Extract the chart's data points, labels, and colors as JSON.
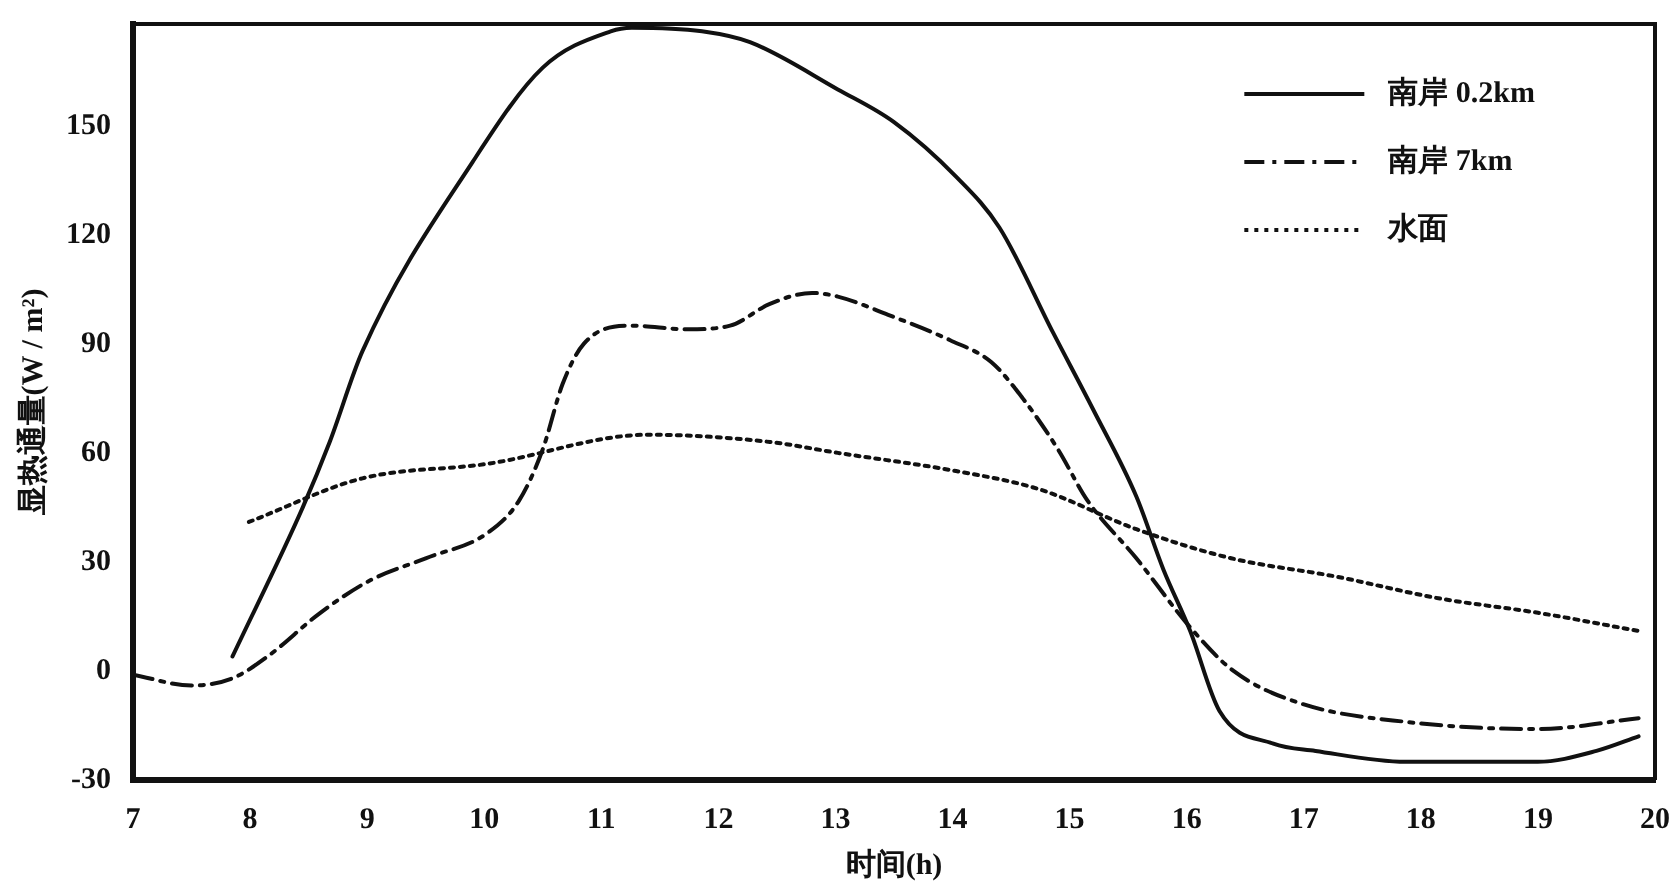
{
  "chart_data": {
    "type": "line",
    "xlabel": "时间(h)",
    "ylabel": "显热通量(W / m²)",
    "xlim": [
      7,
      20
    ],
    "xticks": [
      7,
      8,
      9,
      10,
      11,
      12,
      13,
      14,
      15,
      16,
      17,
      18,
      19,
      20
    ],
    "ylim": [
      -30,
      178
    ],
    "yticks": [
      -30,
      0,
      30,
      60,
      90,
      120,
      150
    ],
    "grid": false,
    "legend": "top right",
    "marker": "none",
    "series": [
      {
        "name": "南岸 0.2km",
        "color": "#111111",
        "line_style": "solid",
        "x": [
          7.85,
          8.45,
          8.68,
          8.96,
          9.9,
          10.5,
          11.08,
          11.26,
          11.86,
          12.27,
          13.02,
          13.5,
          14.03,
          14.4,
          14.86,
          15.2,
          15.57,
          15.8,
          16.03,
          16.28,
          16.74,
          17.1,
          17.87,
          19.0,
          19.5,
          19.86
        ],
        "values": [
          4,
          45,
          63,
          88,
          140,
          166,
          176,
          177,
          176,
          173,
          160,
          151,
          136,
          122,
          93,
          72,
          48,
          28,
          11,
          -11,
          -20,
          -22,
          -25,
          -25,
          -22,
          -18
        ]
      },
      {
        "name": "南岸 7km",
        "color": "#111111",
        "line_style": "dashed",
        "x": [
          7,
          7.5,
          7.85,
          8.15,
          8.6,
          9.03,
          9.5,
          10.03,
          10.3,
          10.5,
          10.67,
          10.85,
          11.26,
          11.73,
          12.1,
          12.44,
          12.8,
          13.02,
          13.45,
          13.98,
          14.33,
          14.6,
          14.9,
          15.15,
          15.57,
          16.03,
          16.4,
          16.98,
          17.87,
          19.0,
          19.86
        ],
        "values": [
          -1,
          -4,
          -2,
          4,
          16,
          25,
          31,
          38,
          47,
          61,
          79,
          90,
          95,
          94,
          95,
          101,
          104,
          103,
          98,
          91,
          85,
          75,
          61,
          47,
          31,
          12,
          0,
          -9,
          -14,
          -16,
          -13
        ]
      },
      {
        "name": "水面",
        "color": "#111111",
        "line_style": "dotted",
        "x": [
          7.99,
          8.96,
          10.03,
          11.4,
          12.44,
          13.02,
          14.03,
          14.74,
          15.57,
          16.38,
          17.27,
          18.15,
          19.0,
          19.86
        ],
        "values": [
          41,
          53,
          57,
          65,
          63,
          60,
          55,
          50,
          39,
          31,
          26,
          20,
          16,
          11
        ]
      }
    ]
  }
}
